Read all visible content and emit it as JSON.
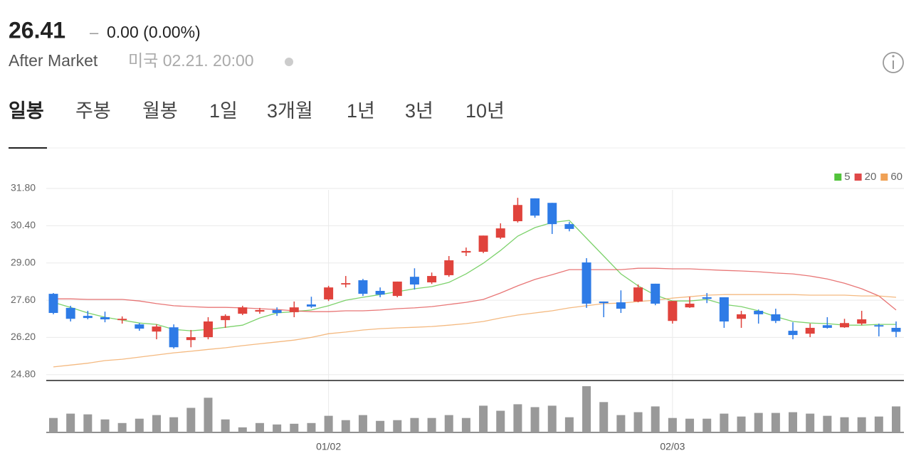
{
  "header": {
    "price": "26.41",
    "change_sign": "–",
    "change": "0.00 (0.00%)",
    "session": "After Market",
    "timestamp": "미국 02.21. 20:00"
  },
  "tabs": [
    "일봉",
    "주봉",
    "월봉",
    "1일",
    "3개월",
    "1년",
    "3년",
    "10년"
  ],
  "chart_data": {
    "type": "candlestick",
    "categories": [
      null,
      null,
      null,
      null,
      null,
      null,
      null,
      null,
      null,
      null,
      null,
      null,
      null,
      null,
      null,
      null,
      "01/02",
      null,
      null,
      null,
      null,
      null,
      null,
      null,
      null,
      null,
      null,
      null,
      null,
      null,
      null,
      null,
      null,
      null,
      null,
      null,
      "02/03",
      null,
      null,
      null,
      null,
      null,
      null,
      null,
      null,
      null,
      null,
      null,
      null,
      null
    ],
    "open": [
      27.84,
      27.31,
      27.01,
      26.96,
      26.85,
      26.69,
      26.42,
      26.58,
      26.1,
      26.21,
      26.85,
      27.09,
      27.17,
      27.23,
      27.15,
      27.44,
      27.63,
      28.19,
      28.35,
      27.95,
      27.76,
      28.48,
      28.27,
      28.54,
      29.39,
      29.42,
      29.95,
      30.57,
      31.43,
      31.26,
      30.46,
      29.02,
      27.55,
      27.52,
      27.55,
      28.22,
      26.82,
      27.33,
      27.71,
      27.71,
      26.9,
      27.2,
      27.07,
      26.45,
      26.34,
      26.66,
      26.58,
      26.72,
      26.66,
      26.56
    ],
    "high": [
      27.87,
      27.39,
      27.2,
      27.17,
      26.99,
      26.74,
      26.69,
      26.69,
      26.48,
      26.96,
      27.07,
      27.39,
      27.31,
      27.33,
      27.55,
      27.73,
      28.14,
      28.51,
      28.4,
      28.08,
      28.3,
      28.8,
      28.64,
      29.26,
      29.58,
      30.03,
      30.49,
      31.45,
      31.43,
      31.26,
      30.54,
      29.18,
      27.55,
      27.97,
      28.19,
      28.22,
      27.57,
      27.73,
      27.87,
      27.71,
      27.2,
      27.25,
      27.28,
      26.77,
      26.72,
      26.96,
      26.9,
      27.2,
      26.72,
      26.8
    ],
    "low": [
      27.07,
      26.8,
      26.88,
      26.77,
      26.72,
      26.45,
      26.13,
      25.78,
      25.83,
      26.13,
      26.56,
      27.04,
      27.09,
      27.01,
      26.96,
      27.31,
      27.57,
      28.08,
      27.76,
      27.71,
      27.71,
      28.0,
      28.21,
      28.48,
      29.26,
      29.37,
      29.9,
      30.52,
      30.7,
      30.09,
      30.19,
      27.31,
      26.96,
      27.12,
      27.52,
      27.41,
      26.72,
      27.31,
      27.49,
      26.56,
      26.56,
      26.72,
      26.74,
      26.13,
      26.21,
      26.53,
      26.56,
      26.66,
      26.24,
      26.21
    ],
    "close": [
      27.12,
      26.9,
      26.93,
      26.88,
      26.9,
      26.53,
      26.61,
      25.83,
      26.21,
      26.8,
      27.01,
      27.33,
      27.23,
      27.12,
      27.33,
      27.36,
      28.08,
      28.24,
      27.84,
      27.81,
      28.3,
      28.19,
      28.51,
      29.1,
      29.45,
      30.03,
      30.3,
      31.18,
      30.78,
      30.46,
      30.28,
      27.47,
      27.49,
      27.28,
      28.08,
      27.47,
      27.57,
      27.47,
      27.65,
      26.8,
      27.07,
      27.07,
      26.82,
      26.29,
      26.56,
      26.56,
      26.74,
      26.88,
      26.61,
      26.41
    ],
    "up_color": "#e0433c",
    "down_color": "#2e7be6",
    "series": [
      {
        "name": "5",
        "color": "#52c33b",
        "values": [
          27.52,
          27.33,
          27.12,
          26.96,
          26.85,
          26.74,
          26.69,
          26.5,
          26.45,
          26.5,
          26.58,
          26.66,
          26.93,
          27.12,
          27.17,
          27.23,
          27.39,
          27.6,
          27.71,
          27.81,
          27.92,
          28.03,
          28.11,
          28.27,
          28.59,
          28.99,
          29.47,
          30.01,
          30.33,
          30.52,
          30.6,
          29.93,
          29.26,
          28.59,
          28.14,
          27.79,
          27.57,
          27.57,
          27.63,
          27.44,
          27.36,
          27.2,
          26.98,
          26.8,
          26.74,
          26.72,
          26.66,
          26.66,
          26.69,
          26.69
        ]
      },
      {
        "name": "20",
        "color": "#e04848",
        "values": [
          27.65,
          27.65,
          27.63,
          27.63,
          27.63,
          27.57,
          27.47,
          27.39,
          27.36,
          27.33,
          27.33,
          27.31,
          27.28,
          27.25,
          27.2,
          27.17,
          27.17,
          27.2,
          27.2,
          27.23,
          27.28,
          27.31,
          27.36,
          27.44,
          27.52,
          27.63,
          27.87,
          28.14,
          28.38,
          28.56,
          28.75,
          28.75,
          28.75,
          28.75,
          28.8,
          28.8,
          28.78,
          28.78,
          28.75,
          28.72,
          28.7,
          28.67,
          28.62,
          28.59,
          28.51,
          28.4,
          28.24,
          28.03,
          27.76,
          27.23
        ]
      },
      {
        "name": "60",
        "color": "#f0a155",
        "values": [
          25.09,
          25.16,
          25.23,
          25.33,
          25.38,
          25.46,
          25.54,
          25.62,
          25.68,
          25.75,
          25.81,
          25.89,
          25.96,
          26.03,
          26.1,
          26.2,
          26.34,
          26.4,
          26.48,
          26.53,
          26.56,
          26.58,
          26.61,
          26.66,
          26.72,
          26.8,
          26.93,
          27.04,
          27.12,
          27.2,
          27.31,
          27.39,
          27.47,
          27.49,
          27.55,
          27.6,
          27.68,
          27.73,
          27.79,
          27.81,
          27.81,
          27.81,
          27.81,
          27.81,
          27.79,
          27.79,
          27.79,
          27.76,
          27.76,
          27.71
        ]
      }
    ],
    "volume": {
      "color": "#999999",
      "values": [
        20,
        26,
        25,
        18,
        13,
        19,
        24,
        21,
        34,
        48,
        18,
        7,
        13,
        11,
        12,
        13,
        23,
        17,
        24,
        16,
        17,
        20,
        20,
        24,
        20,
        37,
        30,
        39,
        35,
        37,
        21,
        64,
        42,
        24,
        28,
        36,
        20,
        19,
        19,
        26,
        22,
        27,
        27,
        28,
        26,
        23,
        21,
        21,
        22,
        36
      ]
    },
    "ylim": [
      24.58,
      32.55
    ],
    "yticks": [
      {
        "value": 31.8,
        "label": "31.80"
      },
      {
        "value": 30.4,
        "label": "30.40"
      },
      {
        "value": 29,
        "label": "29.00"
      },
      {
        "value": 27.6,
        "label": "27.60"
      },
      {
        "value": 26.2,
        "label": "26.20"
      },
      {
        "value": 24.8,
        "label": "24.80"
      }
    ],
    "grid": true,
    "legend": "top-right"
  }
}
